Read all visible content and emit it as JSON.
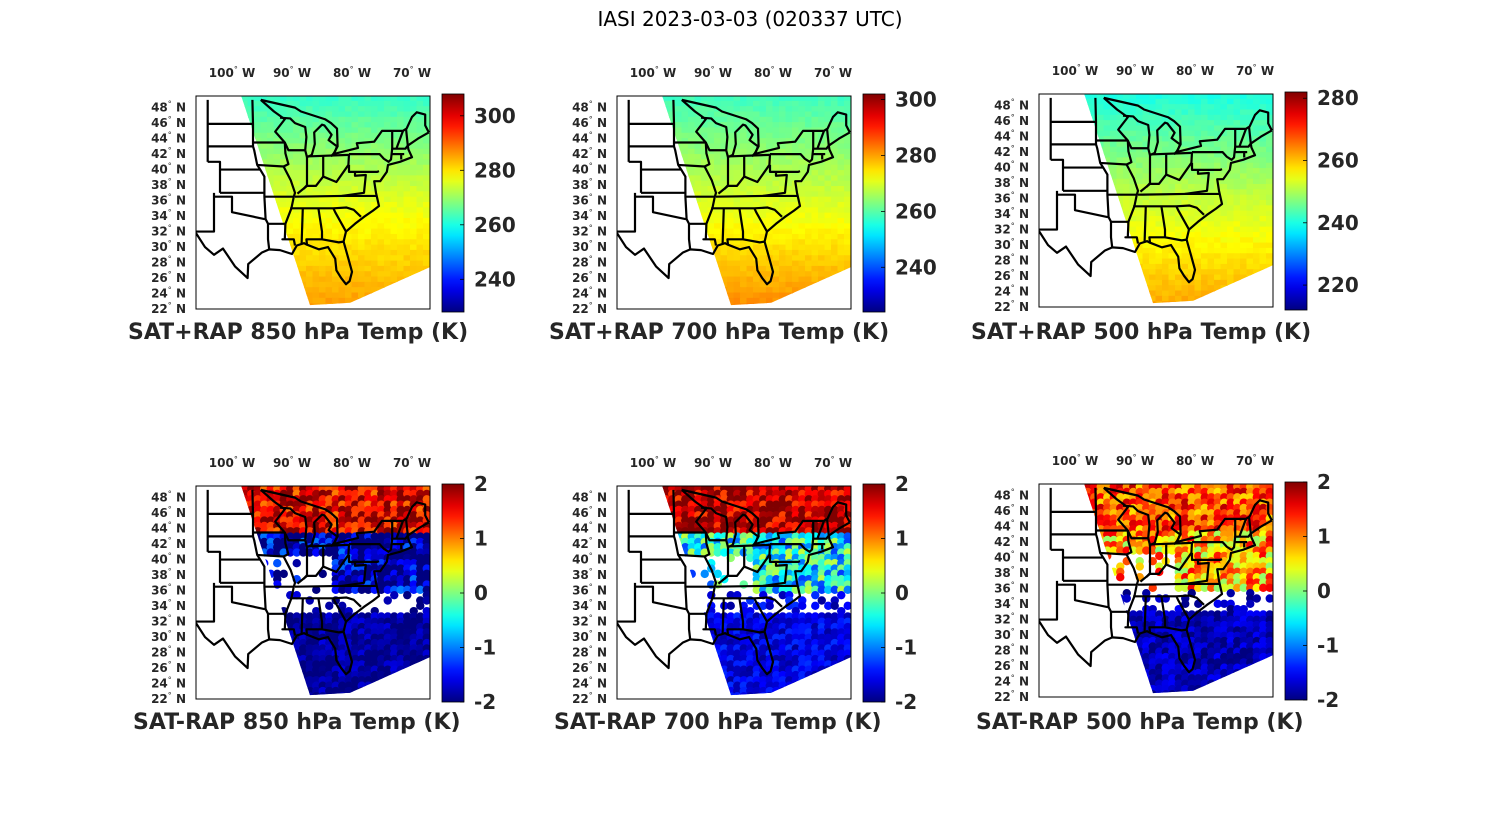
{
  "figure_title": "IASI 2023-03-03 (020337 UTC)",
  "colors": {
    "text": "#262626",
    "state_lines": "#000000",
    "colormap": "jet"
  },
  "chart_data": [
    {
      "type": "heatmap",
      "id": "sat-rap-sum-850",
      "title": "SAT+RAP 850 hPa Temp (K)",
      "xticks": [
        "100° W",
        "90° W",
        "80° W",
        "70° W"
      ],
      "xtick_values": [
        -100,
        -90,
        -80,
        -70
      ],
      "yticks": [
        "48° N",
        "46° N",
        "44° N",
        "42° N",
        "40° N",
        "38° N",
        "36° N",
        "34° N",
        "32° N",
        "30° N",
        "28° N",
        "26° N",
        "24° N",
        "22° N"
      ],
      "ytick_values": [
        48,
        46,
        44,
        42,
        40,
        38,
        36,
        34,
        32,
        30,
        28,
        26,
        24,
        22
      ],
      "xlim": [
        -106,
        -67
      ],
      "ylim": [
        22,
        49.5
      ],
      "colorbar": {
        "ticks": [
          "300",
          "280",
          "260",
          "240"
        ],
        "tick_values": [
          300,
          280,
          260,
          240
        ],
        "clim": [
          228,
          308
        ]
      },
      "field": {
        "north_value": 262,
        "mid_value": 276,
        "south_value": 286
      }
    },
    {
      "type": "heatmap",
      "id": "sat-rap-sum-700",
      "title": "SAT+RAP 700 hPa Temp (K)",
      "xticks": [
        "100° W",
        "90° W",
        "80° W",
        "70° W"
      ],
      "xtick_values": [
        -100,
        -90,
        -80,
        -70
      ],
      "yticks": [
        "48° N",
        "46° N",
        "44° N",
        "42° N",
        "40° N",
        "38° N",
        "36° N",
        "34° N",
        "32° N",
        "30° N",
        "28° N",
        "26° N",
        "24° N",
        "22° N"
      ],
      "ytick_values": [
        48,
        46,
        44,
        42,
        40,
        38,
        36,
        34,
        32,
        30,
        28,
        26,
        24,
        22
      ],
      "xlim": [
        -106,
        -67
      ],
      "ylim": [
        22,
        49.5
      ],
      "colorbar": {
        "ticks": [
          "300",
          "280",
          "260",
          "240"
        ],
        "tick_values": [
          300,
          280,
          260,
          240
        ],
        "clim": [
          224,
          302
        ]
      },
      "field": {
        "north_value": 258,
        "mid_value": 270,
        "south_value": 282
      }
    },
    {
      "type": "heatmap",
      "id": "sat-rap-sum-500",
      "title": "SAT+RAP 500 hPa Temp (K)",
      "xticks": [
        "100° W",
        "90° W",
        "80° W",
        "70° W"
      ],
      "xtick_values": [
        -100,
        -90,
        -80,
        -70
      ],
      "yticks": [
        "48° N",
        "46° N",
        "44° N",
        "42° N",
        "40° N",
        "38° N",
        "36° N",
        "34° N",
        "32° N",
        "30° N",
        "28° N",
        "26° N",
        "24° N",
        "22° N"
      ],
      "ytick_values": [
        48,
        46,
        44,
        42,
        40,
        38,
        36,
        34,
        32,
        30,
        28,
        26,
        24,
        22
      ],
      "xlim": [
        -106,
        -67
      ],
      "ylim": [
        22,
        49.5
      ],
      "colorbar": {
        "ticks": [
          "280",
          "260",
          "240",
          "220"
        ],
        "tick_values": [
          280,
          260,
          240,
          220
        ],
        "clim": [
          212,
          282
        ]
      },
      "field": {
        "north_value": 240,
        "mid_value": 252,
        "south_value": 262
      }
    },
    {
      "type": "heatmap",
      "id": "sat-rap-diff-850",
      "title": "SAT-RAP 850 hPa Temp (K)",
      "xticks": [
        "100° W",
        "90° W",
        "80° W",
        "70° W"
      ],
      "xtick_values": [
        -100,
        -90,
        -80,
        -70
      ],
      "yticks": [
        "48° N",
        "46° N",
        "44° N",
        "42° N",
        "40° N",
        "38° N",
        "36° N",
        "34° N",
        "32° N",
        "30° N",
        "28° N",
        "26° N",
        "24° N",
        "22° N"
      ],
      "ytick_values": [
        48,
        46,
        44,
        42,
        40,
        38,
        36,
        34,
        32,
        30,
        28,
        26,
        24,
        22
      ],
      "xlim": [
        -106,
        -67
      ],
      "ylim": [
        22,
        49.5
      ],
      "colorbar": {
        "ticks": [
          "2",
          "1",
          "0",
          "-1",
          "-2"
        ],
        "tick_values": [
          2,
          1,
          0,
          -1,
          -2
        ],
        "clim": [
          -2,
          2
        ]
      },
      "field": {
        "north_value": 1.6,
        "mid_value": -1.8,
        "south_value": -1.9
      }
    },
    {
      "type": "heatmap",
      "id": "sat-rap-diff-700",
      "title": "SAT-RAP 700 hPa Temp (K)",
      "xticks": [
        "100° W",
        "90° W",
        "80° W",
        "70° W"
      ],
      "xtick_values": [
        -100,
        -90,
        -80,
        -70
      ],
      "yticks": [
        "48° N",
        "46° N",
        "44° N",
        "42° N",
        "40° N",
        "38° N",
        "36° N",
        "34° N",
        "32° N",
        "30° N",
        "28° N",
        "26° N",
        "24° N",
        "22° N"
      ],
      "ytick_values": [
        48,
        46,
        44,
        42,
        40,
        38,
        36,
        34,
        32,
        30,
        28,
        26,
        24,
        22
      ],
      "xlim": [
        -106,
        -67
      ],
      "ylim": [
        22,
        49.5
      ],
      "colorbar": {
        "ticks": [
          "2",
          "1",
          "0",
          "-1",
          "-2"
        ],
        "tick_values": [
          2,
          1,
          0,
          -1,
          -2
        ],
        "clim": [
          -2,
          2
        ]
      },
      "field": {
        "north_value": 1.8,
        "mid_value": -0.5,
        "south_value": -1.6
      }
    },
    {
      "type": "heatmap",
      "id": "sat-rap-diff-500",
      "title": "SAT-RAP 500 hPa Temp (K)",
      "xticks": [
        "100° W",
        "90° W",
        "80° W",
        "70° W"
      ],
      "xtick_values": [
        -100,
        -90,
        -80,
        -70
      ],
      "yticks": [
        "48° N",
        "46° N",
        "44° N",
        "42° N",
        "40° N",
        "38° N",
        "36° N",
        "34° N",
        "32° N",
        "30° N",
        "28° N",
        "26° N",
        "24° N",
        "22° N"
      ],
      "ytick_values": [
        48,
        46,
        44,
        42,
        40,
        38,
        36,
        34,
        32,
        30,
        28,
        26,
        24,
        22
      ],
      "xlim": [
        -106,
        -67
      ],
      "ylim": [
        22,
        49.5
      ],
      "colorbar": {
        "ticks": [
          "2",
          "1",
          "0",
          "-1",
          "-2"
        ],
        "tick_values": [
          2,
          1,
          0,
          -1,
          -2
        ],
        "clim": [
          -2,
          2
        ]
      },
      "field": {
        "north_value": 1.2,
        "mid_value": 0.8,
        "south_value": -1.8
      }
    }
  ]
}
